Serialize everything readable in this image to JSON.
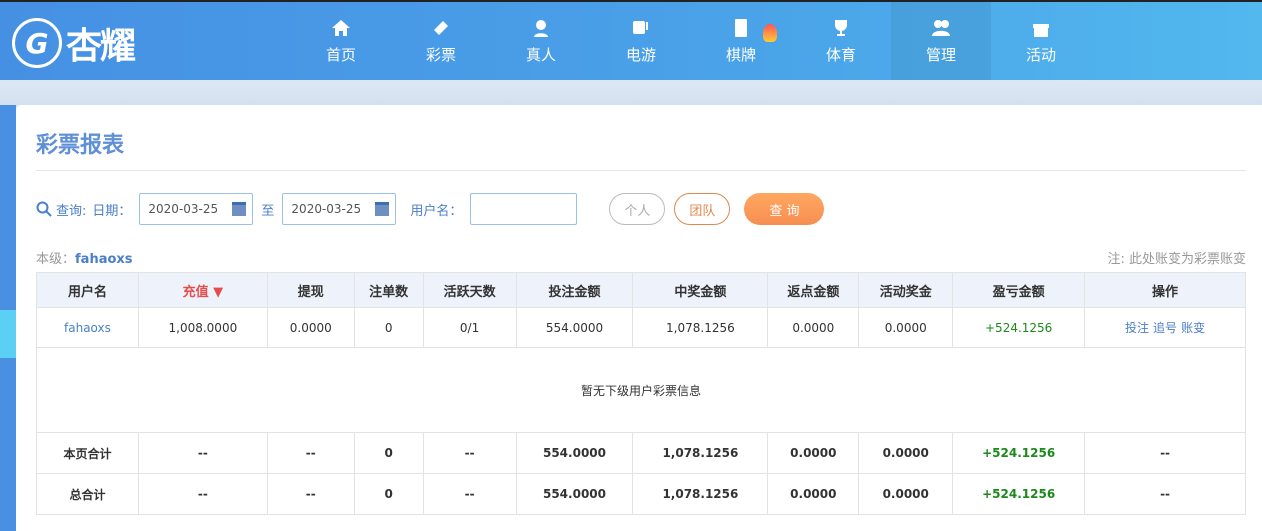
{
  "brand": {
    "name": "杏耀",
    "badge": "G"
  },
  "nav": [
    {
      "label": "首页",
      "icon": "home-icon"
    },
    {
      "label": "彩票",
      "icon": "ticket-icon"
    },
    {
      "label": "真人",
      "icon": "dealer-icon"
    },
    {
      "label": "电游",
      "icon": "slot-icon"
    },
    {
      "label": "棋牌",
      "icon": "mahjong-icon",
      "hot": true
    },
    {
      "label": "体育",
      "icon": "trophy-icon"
    },
    {
      "label": "管理",
      "icon": "users-icon",
      "active": true
    },
    {
      "label": "活动",
      "icon": "gift-icon"
    }
  ],
  "page": {
    "title": "彩票报表"
  },
  "filter": {
    "query_label": "查询:",
    "date_label": "日期：",
    "start": "2020-03-25",
    "to": "至",
    "end": "2020-03-25",
    "user_label": "用户名：",
    "user_value": "",
    "personal": "个人",
    "team": "团队",
    "search": "查 询"
  },
  "level": {
    "label": "本级：",
    "user": "fahaoxs"
  },
  "note": "注: 此处账变为彩票账变",
  "table": {
    "headers": [
      "用户名",
      "充值 ▼",
      "提现",
      "注单数",
      "活跃天数",
      "投注金额",
      "中奖金额",
      "返点金额",
      "活动奖金",
      "盈亏金额",
      "操作"
    ],
    "row": [
      "fahaoxs",
      "1,008.0000",
      "0.0000",
      "0",
      "0/1",
      "554.0000",
      "1,078.1256",
      "0.0000",
      "0.0000",
      "+524.1256"
    ],
    "actions": [
      "投注",
      "追号",
      "账变"
    ],
    "empty": "暂无下级用户彩票信息",
    "totals": [
      [
        "本页合计",
        "--",
        "--",
        "0",
        "--",
        "554.0000",
        "1,078.1256",
        "0.0000",
        "0.0000",
        "+524.1256",
        "--"
      ],
      [
        "总合计",
        "--",
        "--",
        "0",
        "--",
        "554.0000",
        "1,078.1256",
        "0.0000",
        "0.0000",
        "+524.1256",
        "--"
      ]
    ]
  },
  "colors": {
    "accent": "#4a90e2",
    "profit": "#1a8a1a",
    "sort": "#e74c4c",
    "search": "#f78e52"
  }
}
